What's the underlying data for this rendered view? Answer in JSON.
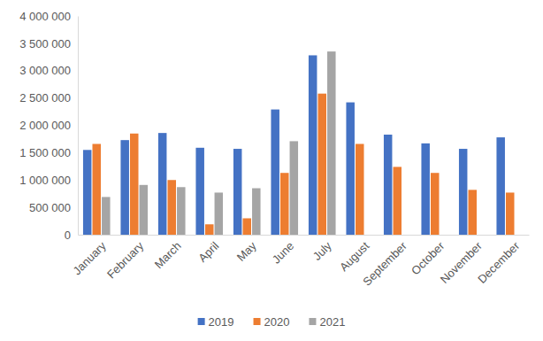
{
  "chart_data": {
    "type": "bar",
    "categories": [
      "January",
      "February",
      "March",
      "April",
      "May",
      "June",
      "July",
      "August",
      "September",
      "October",
      "November",
      "December"
    ],
    "series": [
      {
        "name": "2019",
        "color": "#4472c4",
        "values": [
          1550000,
          1730000,
          1860000,
          1590000,
          1570000,
          2290000,
          3280000,
          2420000,
          1830000,
          1670000,
          1570000,
          1780000
        ]
      },
      {
        "name": "2020",
        "color": "#ed7d31",
        "values": [
          1660000,
          1850000,
          1000000,
          190000,
          300000,
          1130000,
          2580000,
          1660000,
          1240000,
          1130000,
          820000,
          770000
        ]
      },
      {
        "name": "2021",
        "color": "#a5a5a5",
        "values": [
          690000,
          910000,
          870000,
          770000,
          850000,
          1710000,
          3350000,
          null,
          null,
          null,
          null,
          null
        ]
      }
    ],
    "ylim": [
      0,
      4000000
    ],
    "yticks": [
      0,
      {
        "value": 500000,
        "label": "500 000"
      },
      {
        "value": 1000000,
        "label": "1 000 000"
      },
      {
        "value": 1500000,
        "label": "1 500 000"
      },
      {
        "value": 2000000,
        "label": "2 000 000"
      },
      {
        "value": 2500000,
        "label": "2 500 000"
      },
      {
        "value": 3000000,
        "label": "3 000 000"
      },
      {
        "value": 3500000,
        "label": "3 500 000"
      },
      {
        "value": 4000000,
        "label": "4 000 000"
      }
    ],
    "grid": false,
    "legend": "bottom"
  }
}
